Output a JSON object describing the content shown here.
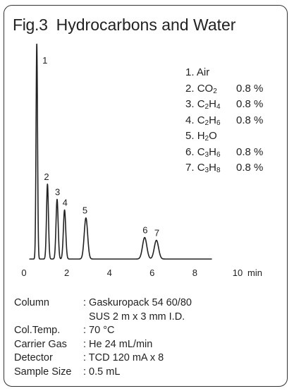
{
  "title": {
    "fig": "Fig.3",
    "text": "Hydrocarbons and Water"
  },
  "chart_data": {
    "type": "line",
    "xlabel": "min",
    "xlim": [
      0,
      10
    ],
    "xticks": [
      0,
      2,
      4,
      6,
      8,
      10
    ],
    "trace_color": "#222222",
    "peaks": [
      {
        "label": "1",
        "rt": 0.6,
        "height": 1.0,
        "width": 0.035
      },
      {
        "label": "2",
        "rt": 1.1,
        "height": 0.348,
        "width": 0.045
      },
      {
        "label": "3",
        "rt": 1.55,
        "height": 0.277,
        "width": 0.05
      },
      {
        "label": "4",
        "rt": 1.9,
        "height": 0.228,
        "width": 0.055
      },
      {
        "label": "5",
        "rt": 2.9,
        "height": 0.191,
        "width": 0.08
      },
      {
        "label": "6",
        "rt": 5.65,
        "height": 0.1,
        "width": 0.1
      },
      {
        "label": "7",
        "rt": 6.2,
        "height": 0.087,
        "width": 0.1
      }
    ],
    "legend": [
      {
        "num": "1.",
        "name": "Air",
        "sub": "",
        "parts": [
          [
            "Air",
            ""
          ]
        ],
        "conc": ""
      },
      {
        "num": "2.",
        "parts": [
          [
            "CO",
            "2"
          ]
        ],
        "conc": "0.8 %"
      },
      {
        "num": "3.",
        "parts": [
          [
            "C",
            "2"
          ],
          [
            "H",
            "4"
          ]
        ],
        "conc": "0.8 %"
      },
      {
        "num": "4.",
        "parts": [
          [
            "C",
            "2"
          ],
          [
            "H",
            "6"
          ]
        ],
        "conc": "0.8 %"
      },
      {
        "num": "5.",
        "parts": [
          [
            "H",
            "2"
          ],
          [
            "O",
            ""
          ]
        ],
        "conc": ""
      },
      {
        "num": "6.",
        "parts": [
          [
            "C",
            "3"
          ],
          [
            "H",
            "6"
          ]
        ],
        "conc": "0.8 %"
      },
      {
        "num": "7.",
        "parts": [
          [
            "C",
            "3"
          ],
          [
            "H",
            "8"
          ]
        ],
        "conc": "0.8 %"
      }
    ]
  },
  "conditions": [
    {
      "key": "Column",
      "value": ": Gaskuropack 54 60/80"
    },
    {
      "key": "",
      "value": "SUS 2 m x 3 mm I.D."
    },
    {
      "key": "Col.Temp.",
      "value": ": 70 °C"
    },
    {
      "key": "Carrier Gas",
      "value": ": He 24 mL/min"
    },
    {
      "key": "Detector",
      "value": ": TCD 120 mA x 8"
    },
    {
      "key": "Sample Size",
      "value": ": 0.5 mL"
    }
  ]
}
